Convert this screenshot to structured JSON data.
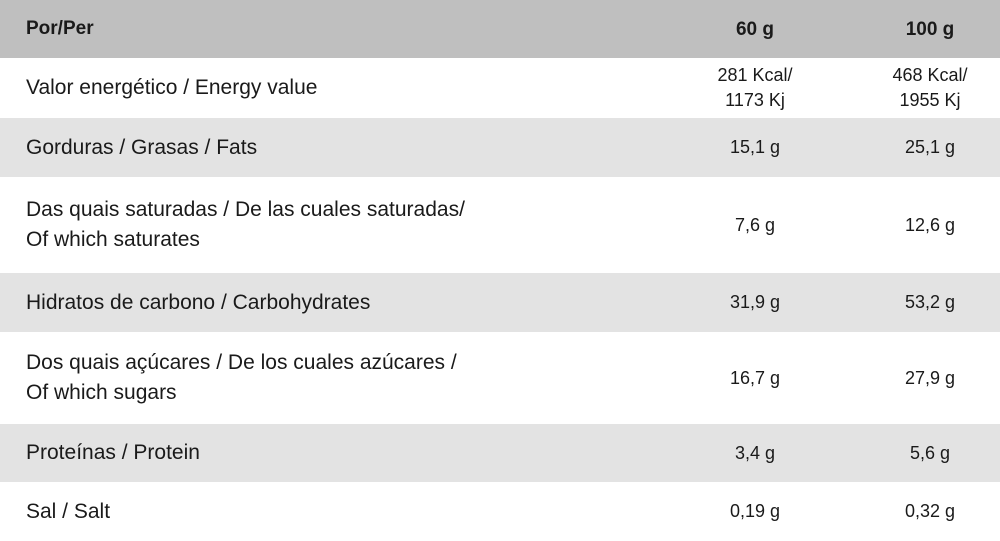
{
  "table": {
    "header": [
      "Por/Per",
      "60 g",
      "100 g"
    ],
    "rows": [
      [
        [
          "Valor energético / Energy value"
        ],
        [
          "281 Kcal/",
          "1173 Kj"
        ],
        [
          "468 Kcal/",
          "1955 Kj"
        ]
      ],
      [
        [
          "Gorduras / Grasas / Fats"
        ],
        [
          "15,1 g"
        ],
        [
          "25,1 g"
        ]
      ],
      [
        [
          "Das quais saturadas / De las cuales saturadas/",
          "Of which saturates"
        ],
        [
          "7,6 g"
        ],
        [
          "12,6 g"
        ]
      ],
      [
        [
          "Hidratos de carbono / Carbohydrates"
        ],
        [
          "31,9 g"
        ],
        [
          "53,2 g"
        ]
      ],
      [
        [
          "Dos quais açúcares / De los cuales azúcares /",
          "Of which sugars"
        ],
        [
          "16,7 g"
        ],
        [
          "27,9 g"
        ]
      ],
      [
        [
          "Proteínas / Protein"
        ],
        [
          "3,4 g"
        ],
        [
          "5,6 g"
        ]
      ],
      [
        [
          "Sal / Salt"
        ],
        [
          "0,19 g"
        ],
        [
          "0,32 g"
        ]
      ]
    ]
  }
}
